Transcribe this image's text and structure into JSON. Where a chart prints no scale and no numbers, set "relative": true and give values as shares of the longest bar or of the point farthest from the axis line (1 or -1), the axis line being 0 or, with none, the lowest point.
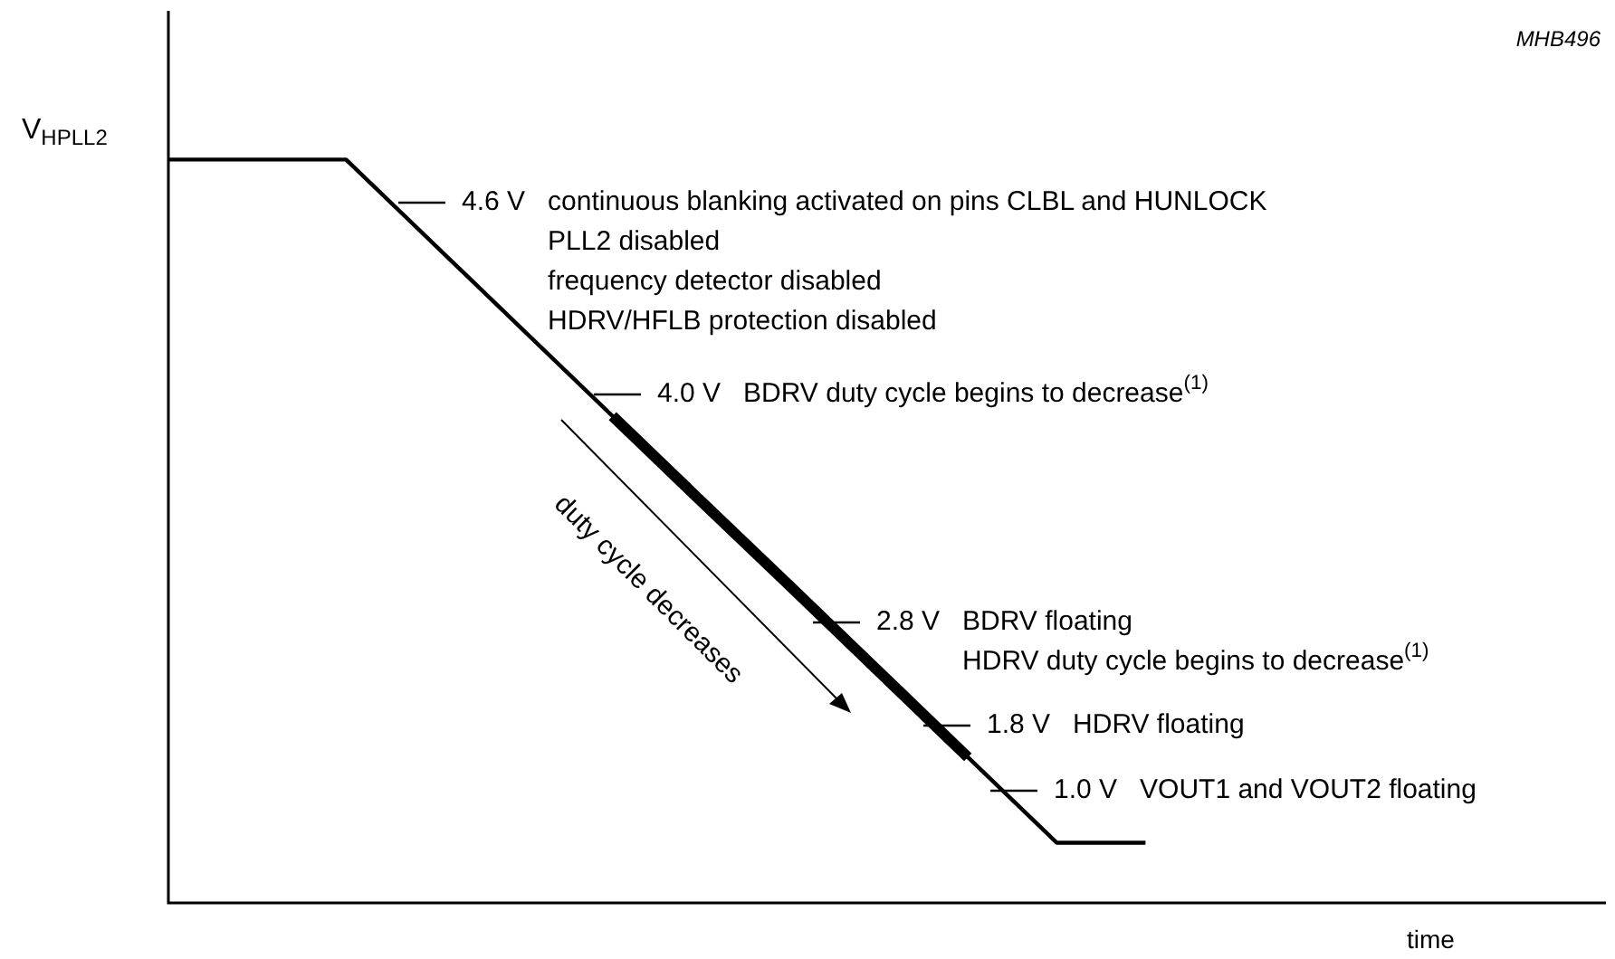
{
  "chart_data": {
    "type": "line",
    "relative": true,
    "xlabel": "time",
    "ylabel": "V$_{HPLL2}$",
    "categories": [
      null,
      null,
      null,
      null,
      null,
      null,
      null,
      null,
      null,
      null,
      null,
      null,
      null,
      null,
      null,
      null,
      null
    ],
    "series": [
      {
        "color": "#000000",
        "values": [
          1,
          1,
          1,
          0.885,
          0.77,
          0.655,
          0.54,
          0.426,
          0.311,
          0.196,
          0.081,
          0.081,
          null,
          null,
          null,
          null,
          null
        ]
      },
      {
        "color": "#000000",
        "values": [
          null,
          null,
          null,
          null,
          null,
          0.655,
          0.54,
          0.426,
          0.311,
          0.196,
          null,
          null,
          null,
          null,
          null,
          null,
          null
        ]
      }
    ],
    "legend": false,
    "grid": false,
    "marker": "none",
    "line_style": "solid",
    "annotations": [
      "4.6 V   continuous blanking activated on pins CLBL and HUNLOCK\nPLL2 disabled\nfrequency detector disabled\nHDRV/HFLB protection disabled",
      "4.0 V   BDRV duty cycle begins to decrease$^{(1)}$",
      "2.8 V   BDRV floating\nHDRV duty cycle begins to decrease$^{(1)}$",
      "1.8 V   HDRV floating",
      "1.0 V   VOUT1 and VOUT2 floating",
      "MHB496",
      "duty cycle decreases"
    ]
  }
}
